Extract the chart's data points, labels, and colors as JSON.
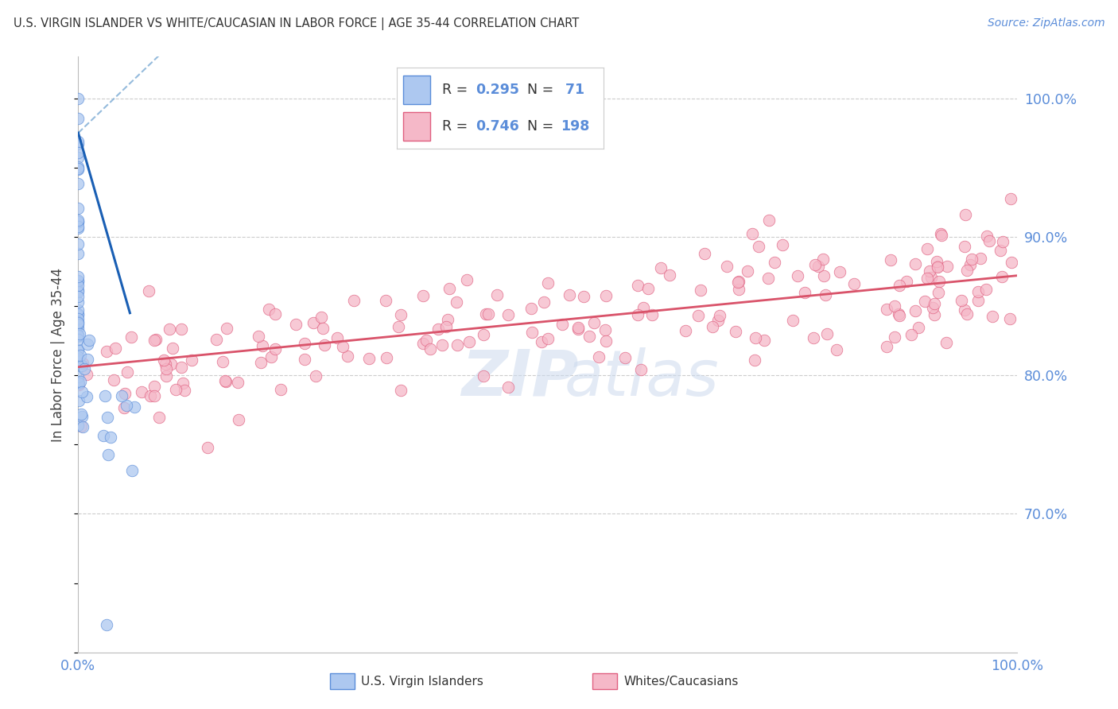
{
  "title": "U.S. VIRGIN ISLANDER VS WHITE/CAUCASIAN IN LABOR FORCE | AGE 35-44 CORRELATION CHART",
  "source": "Source: ZipAtlas.com",
  "ylabel": "In Labor Force | Age 35-44",
  "xlim": [
    0.0,
    1.0
  ],
  "ylim": [
    0.6,
    1.03
  ],
  "yticks": [
    0.7,
    0.8,
    0.9,
    1.0
  ],
  "ytick_labels": [
    "70.0%",
    "80.0%",
    "90.0%",
    "100.0%"
  ],
  "xtick_labels": [
    "0.0%",
    "",
    "",
    "",
    "",
    "100.0%"
  ],
  "blue_R": "0.295",
  "blue_N": "71",
  "pink_R": "0.746",
  "pink_N": "198",
  "blue_fill": "#adc8f0",
  "blue_edge": "#5b8dd9",
  "blue_line": "#1a5fb4",
  "blue_dash": "#7baad4",
  "pink_fill": "#f5b8c8",
  "pink_edge": "#e06080",
  "pink_line": "#d9536a",
  "axis_color": "#5b8dd9",
  "grid_color": "#cccccc",
  "bg_color": "#ffffff",
  "legend_R_eq_color": "#333333",
  "legend_val_color": "#5b8dd9",
  "watermark_zip": "ZIP",
  "watermark_atlas": "atlas"
}
